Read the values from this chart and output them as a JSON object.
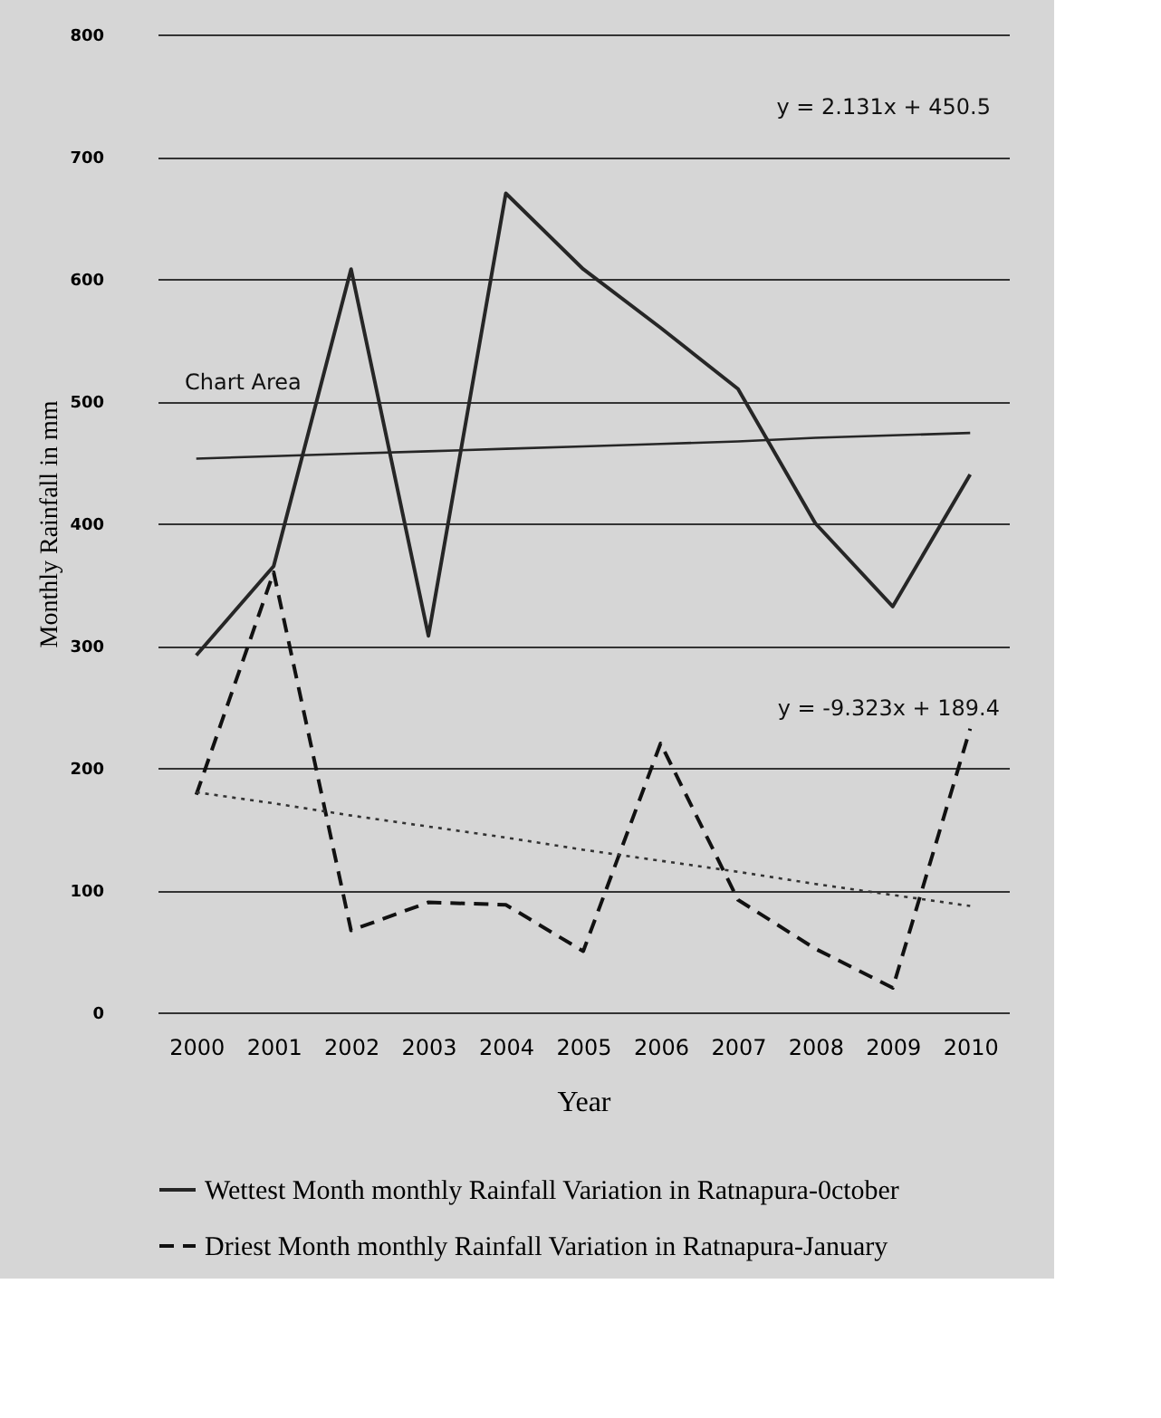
{
  "chart_data": {
    "type": "line",
    "xlabel": "Year",
    "ylabel": "Monthly Rainfall in mm",
    "categories": [
      "2000",
      "2001",
      "2002",
      "2003",
      "2004",
      "2005",
      "2006",
      "2007",
      "2008",
      "2009",
      "2010"
    ],
    "series": [
      {
        "name": "Wettest Month monthly Rainfall Variation in Ratnapura-0ctober",
        "color": "#262626",
        "line_style": "solid",
        "values": [
          292,
          365,
          608,
          308,
          670,
          608,
          560,
          510,
          400,
          332,
          440
        ]
      },
      {
        "name": "Driest Month monthly Rainfall Variation in Ratnapura-January",
        "color": "#111111",
        "line_style": "dashed",
        "values": [
          178,
          360,
          67,
          90,
          88,
          50,
          220,
          92,
          52,
          20,
          232
        ]
      },
      {
        "type": "line",
        "color": "#262626",
        "line_style": "solid",
        "values": [
          453,
          455,
          457,
          459,
          461,
          463,
          465,
          467,
          470,
          472,
          474
        ]
      },
      {
        "type": "line",
        "color": "#333333",
        "line_style": "dotted",
        "values": [
          180,
          171,
          161,
          152,
          143,
          133,
          124,
          115,
          105,
          96,
          87
        ]
      }
    ],
    "ylim": [
      0,
      800
    ],
    "yticks": [
      0,
      100,
      200,
      300,
      400,
      500,
      600,
      700,
      800
    ],
    "grid": "y",
    "legend": "bottom",
    "annotations": [
      "y = 2.131x + 450.5",
      "y = -9.323x + 189.4",
      "Chart Area"
    ]
  }
}
